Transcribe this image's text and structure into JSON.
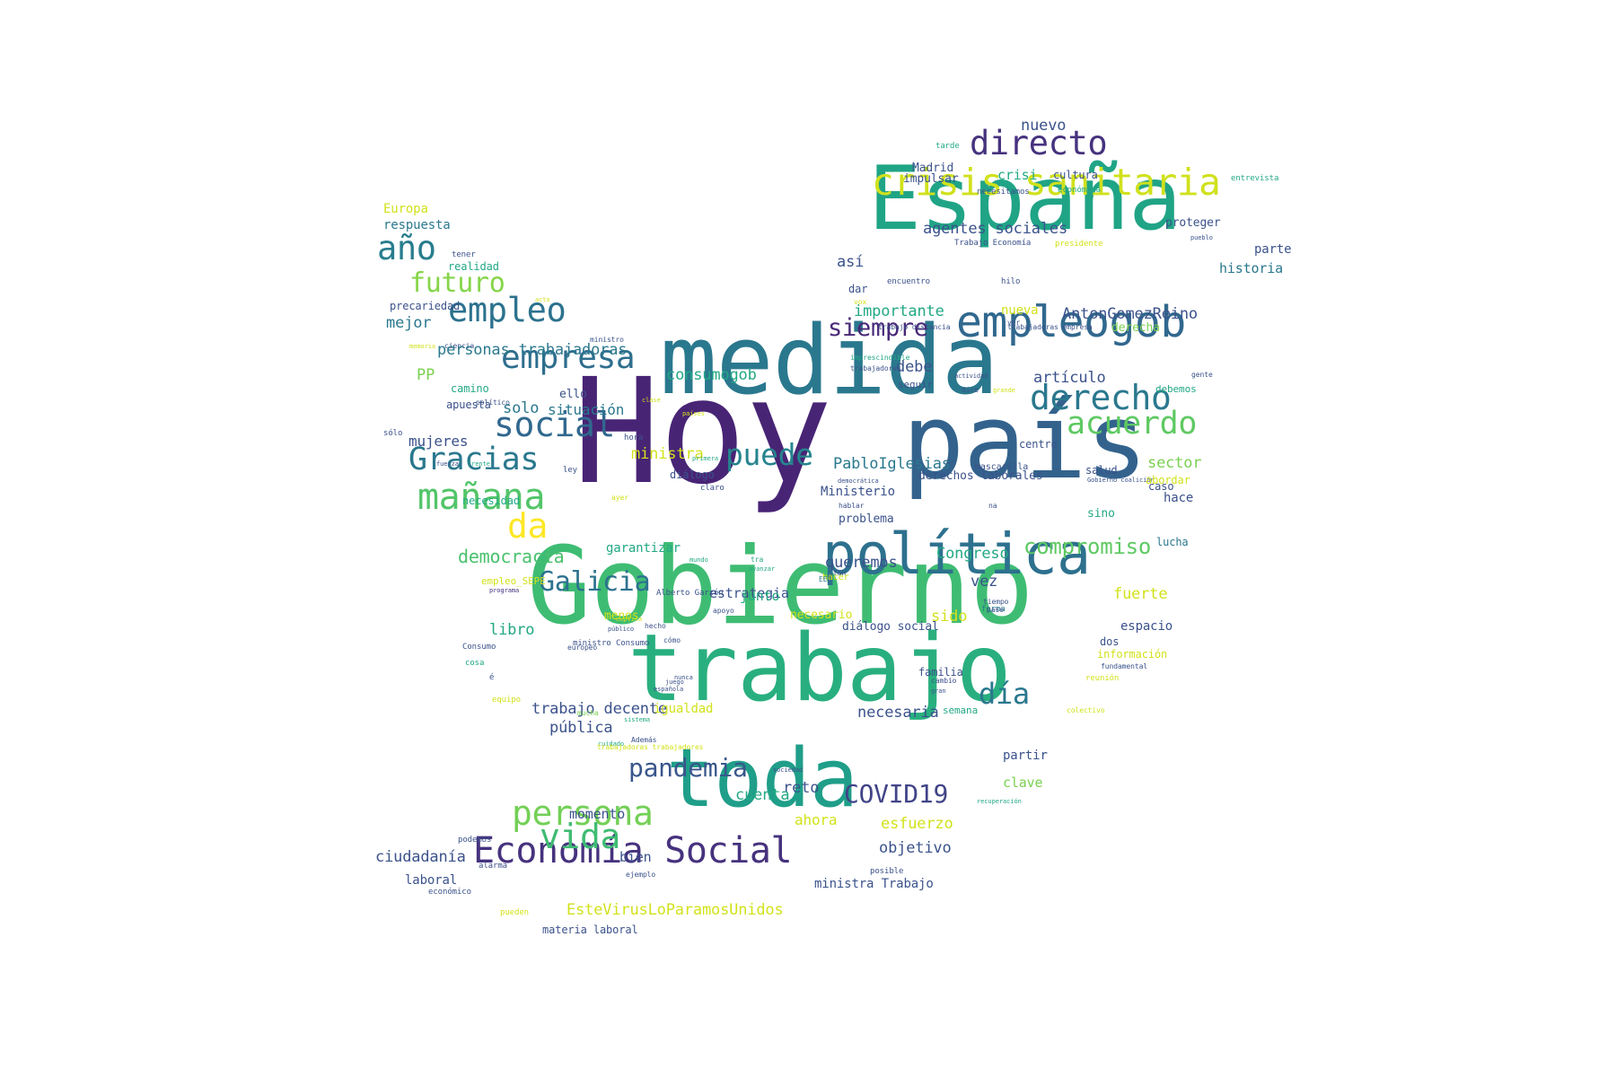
{
  "cloud": {
    "words": [
      {
        "text": "Hoy",
        "color": "#482475"
      },
      {
        "text": "país",
        "color": "#33638d"
      },
      {
        "text": "Gobierno",
        "color": "#3fbc73"
      },
      {
        "text": "medida",
        "color": "#2a788e"
      },
      {
        "text": "España",
        "color": "#20a486"
      },
      {
        "text": "trabajo",
        "color": "#29af7f"
      },
      {
        "text": "toda",
        "color": "#1f9e89"
      },
      {
        "text": "política",
        "color": "#2d718e"
      },
      {
        "text": "empleogob",
        "color": "#31688e"
      },
      {
        "text": "crisis sanitaria",
        "color": "#d0e11c"
      },
      {
        "text": "directo",
        "color": "#46327e"
      },
      {
        "text": "Economía Social",
        "color": "#46327e"
      },
      {
        "text": "mañana",
        "color": "#52c569"
      },
      {
        "text": "empresa",
        "color": "#2e6e8e"
      },
      {
        "text": "derecho",
        "color": "#2a788e"
      },
      {
        "text": "social",
        "color": "#31688e"
      },
      {
        "text": "Gracias",
        "color": "#2a788e"
      },
      {
        "text": "acuerdo",
        "color": "#5ec962"
      },
      {
        "text": "persona",
        "color": "#73d056"
      },
      {
        "text": "vida",
        "color": "#3fbc73"
      },
      {
        "text": "empleo",
        "color": "#2c728e"
      },
      {
        "text": "Galicia",
        "color": "#2c728e"
      },
      {
        "text": "puede",
        "color": "#25848e"
      },
      {
        "text": "pandemia",
        "color": "#39568c"
      },
      {
        "text": "COVID19",
        "color": "#414487"
      },
      {
        "text": "futuro",
        "color": "#86d549"
      },
      {
        "text": "año",
        "color": "#287d8e"
      },
      {
        "text": "da",
        "color": "#fde725"
      },
      {
        "text": "día",
        "color": "#2a788e"
      },
      {
        "text": "siempre",
        "color": "#482878"
      },
      {
        "text": "compromiso",
        "color": "#5ec962"
      },
      {
        "text": "democracia",
        "color": "#4ac16d"
      },
      {
        "text": "agentes sociales",
        "color": "#3b528b"
      },
      {
        "text": "nuevo",
        "color": "#3b528b"
      },
      {
        "text": "Madrid",
        "color": "#3b528b"
      },
      {
        "text": "impulsar",
        "color": "#3b528b"
      },
      {
        "text": "crisi",
        "color": "#22a884"
      },
      {
        "text": "cultura",
        "color": "#3b528b"
      },
      {
        "text": "necesitamos",
        "color": "#3b528b"
      },
      {
        "text": "económica",
        "color": "#22a884"
      },
      {
        "text": "entrevista",
        "color": "#22a884"
      },
      {
        "text": "tarde",
        "color": "#22a884"
      },
      {
        "text": "proteger",
        "color": "#3b528b"
      },
      {
        "text": "pueblo",
        "color": "#3b528b"
      },
      {
        "text": "Trabajo Economía",
        "color": "#3b528b"
      },
      {
        "text": "presidente",
        "color": "#d2e21b"
      },
      {
        "text": "parte",
        "color": "#3b528b"
      },
      {
        "text": "historia",
        "color": "#2a788e"
      },
      {
        "text": "hilo",
        "color": "#3b528b"
      },
      {
        "text": "encuentro",
        "color": "#3b528b"
      },
      {
        "text": "así",
        "color": "#3b528b"
      },
      {
        "text": "dar",
        "color": "#3b528b"
      },
      {
        "text": "vox",
        "color": "#d2e21b"
      },
      {
        "text": "importante",
        "color": "#22a884"
      },
      {
        "text": "AntonGomezReino",
        "color": "#3b528b"
      },
      {
        "text": "nueva",
        "color": "#d2e21b"
      },
      {
        "text": "trabajo distancia",
        "color": "#3b528b"
      },
      {
        "text": "trabajadoras empresa",
        "color": "#3b528b"
      },
      {
        "text": "ver",
        "color": "#3b528b"
      },
      {
        "text": "derecha",
        "color": "#7ad151"
      },
      {
        "text": "imprescindible",
        "color": "#22a884"
      },
      {
        "text": "trabajadores",
        "color": "#3b528b"
      },
      {
        "text": "actividad",
        "color": "#3b528b"
      },
      {
        "text": "gente",
        "color": "#3b528b"
      },
      {
        "text": "debe",
        "color": "#3b528b"
      },
      {
        "text": "seguir",
        "color": "#3b528b"
      },
      {
        "text": "artículo",
        "color": "#3b528b"
      },
      {
        "text": "debemos",
        "color": "#22a884"
      },
      {
        "text": "dice",
        "color": "#3b528b"
      },
      {
        "text": "grande",
        "color": "#d2e21b"
      },
      {
        "text": "Europa",
        "color": "#d2e21b"
      },
      {
        "text": "respuesta",
        "color": "#2a788e"
      },
      {
        "text": "tener",
        "color": "#3b528b"
      },
      {
        "text": "realidad",
        "color": "#22a884"
      },
      {
        "text": "acto",
        "color": "#d2e21b"
      },
      {
        "text": "precariedad",
        "color": "#3b528b"
      },
      {
        "text": "ministro",
        "color": "#3b528b"
      },
      {
        "text": "memoria",
        "color": "#d2e21b"
      },
      {
        "text": "ciencia",
        "color": "#3b528b"
      },
      {
        "text": "mejor",
        "color": "#2a788e"
      },
      {
        "text": "personas trabajadoras",
        "color": "#2a788e"
      },
      {
        "text": "consumogob",
        "color": "#22a884"
      },
      {
        "text": "PP",
        "color": "#7ad151"
      },
      {
        "text": "camino",
        "color": "#22a884"
      },
      {
        "text": "ello",
        "color": "#3b528b"
      },
      {
        "text": "clase",
        "color": "#d2e21b"
      },
      {
        "text": "apuesta",
        "color": "#3b528b"
      },
      {
        "text": "político",
        "color": "#3b528b"
      },
      {
        "text": "países",
        "color": "#d2e21b"
      },
      {
        "text": "solo",
        "color": "#2a788e"
      },
      {
        "text": "situación",
        "color": "#2a788e"
      },
      {
        "text": "sólo",
        "color": "#3b528b"
      },
      {
        "text": "mujeres",
        "color": "#3b528b"
      },
      {
        "text": "hora",
        "color": "#3b528b"
      },
      {
        "text": "fuerza",
        "color": "#3b528b"
      },
      {
        "text": "frente",
        "color": "#22a884"
      },
      {
        "text": "ministra",
        "color": "#d2e21b"
      },
      {
        "text": "primera",
        "color": "#22a884"
      },
      {
        "text": "ley",
        "color": "#3b528b"
      },
      {
        "text": "diálogo",
        "color": "#3b528b"
      },
      {
        "text": "claro",
        "color": "#3b528b"
      },
      {
        "text": "PabloIglesias",
        "color": "#2a788e"
      },
      {
        "text": "derechos laborales",
        "color": "#3b528b"
      },
      {
        "text": "mascarilla",
        "color": "#3b528b"
      },
      {
        "text": "democrática",
        "color": "#3b528b"
      },
      {
        "text": "salud",
        "color": "#3b528b"
      },
      {
        "text": "Gobierno coalición",
        "color": "#3b528b"
      },
      {
        "text": "sector",
        "color": "#7ad151"
      },
      {
        "text": "abordar",
        "color": "#d2e21b"
      },
      {
        "text": "centro",
        "color": "#3b528b"
      },
      {
        "text": "caso",
        "color": "#3b528b"
      },
      {
        "text": "hace",
        "color": "#3b528b"
      },
      {
        "text": "necesidad",
        "color": "#22a884"
      },
      {
        "text": "ayer",
        "color": "#d2e21b"
      },
      {
        "text": "Ministerio",
        "color": "#3b528b"
      },
      {
        "text": "hablar",
        "color": "#3b528b"
      },
      {
        "text": "na",
        "color": "#3b528b"
      },
      {
        "text": "sino",
        "color": "#22a884"
      },
      {
        "text": "problema",
        "color": "#3b528b"
      },
      {
        "text": "lucha",
        "color": "#2a788e"
      },
      {
        "text": "garantizar",
        "color": "#22a884"
      },
      {
        "text": "mundo",
        "color": "#22a884"
      },
      {
        "text": "tra",
        "color": "#22a884"
      },
      {
        "text": "avanzar",
        "color": "#22a884"
      },
      {
        "text": "tan",
        "color": "#3b528b"
      },
      {
        "text": "empleo_SEPE",
        "color": "#d2e21b"
      },
      {
        "text": "programa",
        "color": "#46327e"
      },
      {
        "text": "queremos",
        "color": "#3b528b"
      },
      {
        "text": "hacer",
        "color": "#d2e21b"
      },
      {
        "text": "Congreso",
        "color": "#22a884"
      },
      {
        "text": "Alberto Garzón",
        "color": "#3b528b"
      },
      {
        "text": "vez",
        "color": "#3b528b"
      },
      {
        "text": "tiempo",
        "color": "#3b528b"
      },
      {
        "text": "estrategia",
        "color": "#3b528b"
      },
      {
        "text": "junto",
        "color": "#22a884"
      },
      {
        "text": "EE",
        "color": "#2a788e"
      },
      {
        "text": "fuerte",
        "color": "#d2e21b"
      },
      {
        "text": "forma",
        "color": "#2a788e"
      },
      {
        "text": "apoyo",
        "color": "#3b528b"
      },
      {
        "text": "paso",
        "color": "#3b528b"
      },
      {
        "text": "menos",
        "color": "#d2e21b"
      },
      {
        "text": "explica",
        "color": "#d2e21b"
      },
      {
        "text": "hecho",
        "color": "#3b528b"
      },
      {
        "text": "necesario",
        "color": "#d2e21b"
      },
      {
        "text": "público",
        "color": "#3b528b"
      },
      {
        "text": "diálogo social",
        "color": "#3b528b"
      },
      {
        "text": "sido",
        "color": "#d2e21b"
      },
      {
        "text": "espacio",
        "color": "#3b528b"
      },
      {
        "text": "dos",
        "color": "#3b528b"
      },
      {
        "text": "libro",
        "color": "#22a884"
      },
      {
        "text": "Consumo",
        "color": "#3b528b"
      },
      {
        "text": "europeo",
        "color": "#3b528b"
      },
      {
        "text": "ministro Consumo",
        "color": "#3b528b"
      },
      {
        "text": "cómo",
        "color": "#3b528b"
      },
      {
        "text": "información",
        "color": "#d2e21b"
      },
      {
        "text": "fundamental",
        "color": "#3b528b"
      },
      {
        "text": "cosa",
        "color": "#22a884"
      },
      {
        "text": "é",
        "color": "#3b528b"
      },
      {
        "text": "nunca",
        "color": "#3b528b"
      },
      {
        "text": "familia",
        "color": "#3b528b"
      },
      {
        "text": "reunión",
        "color": "#d2e21b"
      },
      {
        "text": "juego",
        "color": "#3b528b"
      },
      {
        "text": "cambio",
        "color": "#3b528b"
      },
      {
        "text": "equipo",
        "color": "#d2e21b"
      },
      {
        "text": "española",
        "color": "#3b528b"
      },
      {
        "text": "gran",
        "color": "#3b528b"
      },
      {
        "text": "trabajo decente",
        "color": "#3b528b"
      },
      {
        "text": "igualdad",
        "color": "#d2e21b"
      },
      {
        "text": "necesaria",
        "color": "#3b528b"
      },
      {
        "text": "semana",
        "color": "#22a884"
      },
      {
        "text": "colectivo",
        "color": "#d2e21b"
      },
      {
        "text": "mucha",
        "color": "#7ad151"
      },
      {
        "text": "pública",
        "color": "#3b528b"
      },
      {
        "text": "sistema",
        "color": "#22a884"
      },
      {
        "text": "Además",
        "color": "#3b528b"
      },
      {
        "text": "cuidado",
        "color": "#22a884"
      },
      {
        "text": "partir",
        "color": "#3b528b"
      },
      {
        "text": "reto",
        "color": "#3b528b"
      },
      {
        "text": "trabajadoras trabajadores",
        "color": "#d2e21b"
      },
      {
        "text": "sociedad",
        "color": "#3b528b"
      },
      {
        "text": "clave",
        "color": "#7ad151"
      },
      {
        "text": "cuenta",
        "color": "#22a884"
      },
      {
        "text": "recuperación",
        "color": "#22a884"
      },
      {
        "text": "momento",
        "color": "#3b528b"
      },
      {
        "text": "ahora",
        "color": "#d2e21b"
      },
      {
        "text": "esfuerzo",
        "color": "#d2e21b"
      },
      {
        "text": "objetivo",
        "color": "#3b528b"
      },
      {
        "text": "podemos",
        "color": "#3b528b"
      },
      {
        "text": "ciudadanía",
        "color": "#3b528b"
      },
      {
        "text": "bien",
        "color": "#3b528b"
      },
      {
        "text": "alarma",
        "color": "#3b528b"
      },
      {
        "text": "ejemplo",
        "color": "#3b528b"
      },
      {
        "text": "posible",
        "color": "#3b528b"
      },
      {
        "text": "laboral",
        "color": "#3b528b"
      },
      {
        "text": "ministra Trabajo",
        "color": "#3b528b"
      },
      {
        "text": "económico",
        "color": "#3b528b"
      },
      {
        "text": "EsteVirusLoParamosUnidos",
        "color": "#d2e21b"
      },
      {
        "text": "pueden",
        "color": "#d2e21b"
      },
      {
        "text": "materia laboral",
        "color": "#3b528b"
      }
    ]
  }
}
